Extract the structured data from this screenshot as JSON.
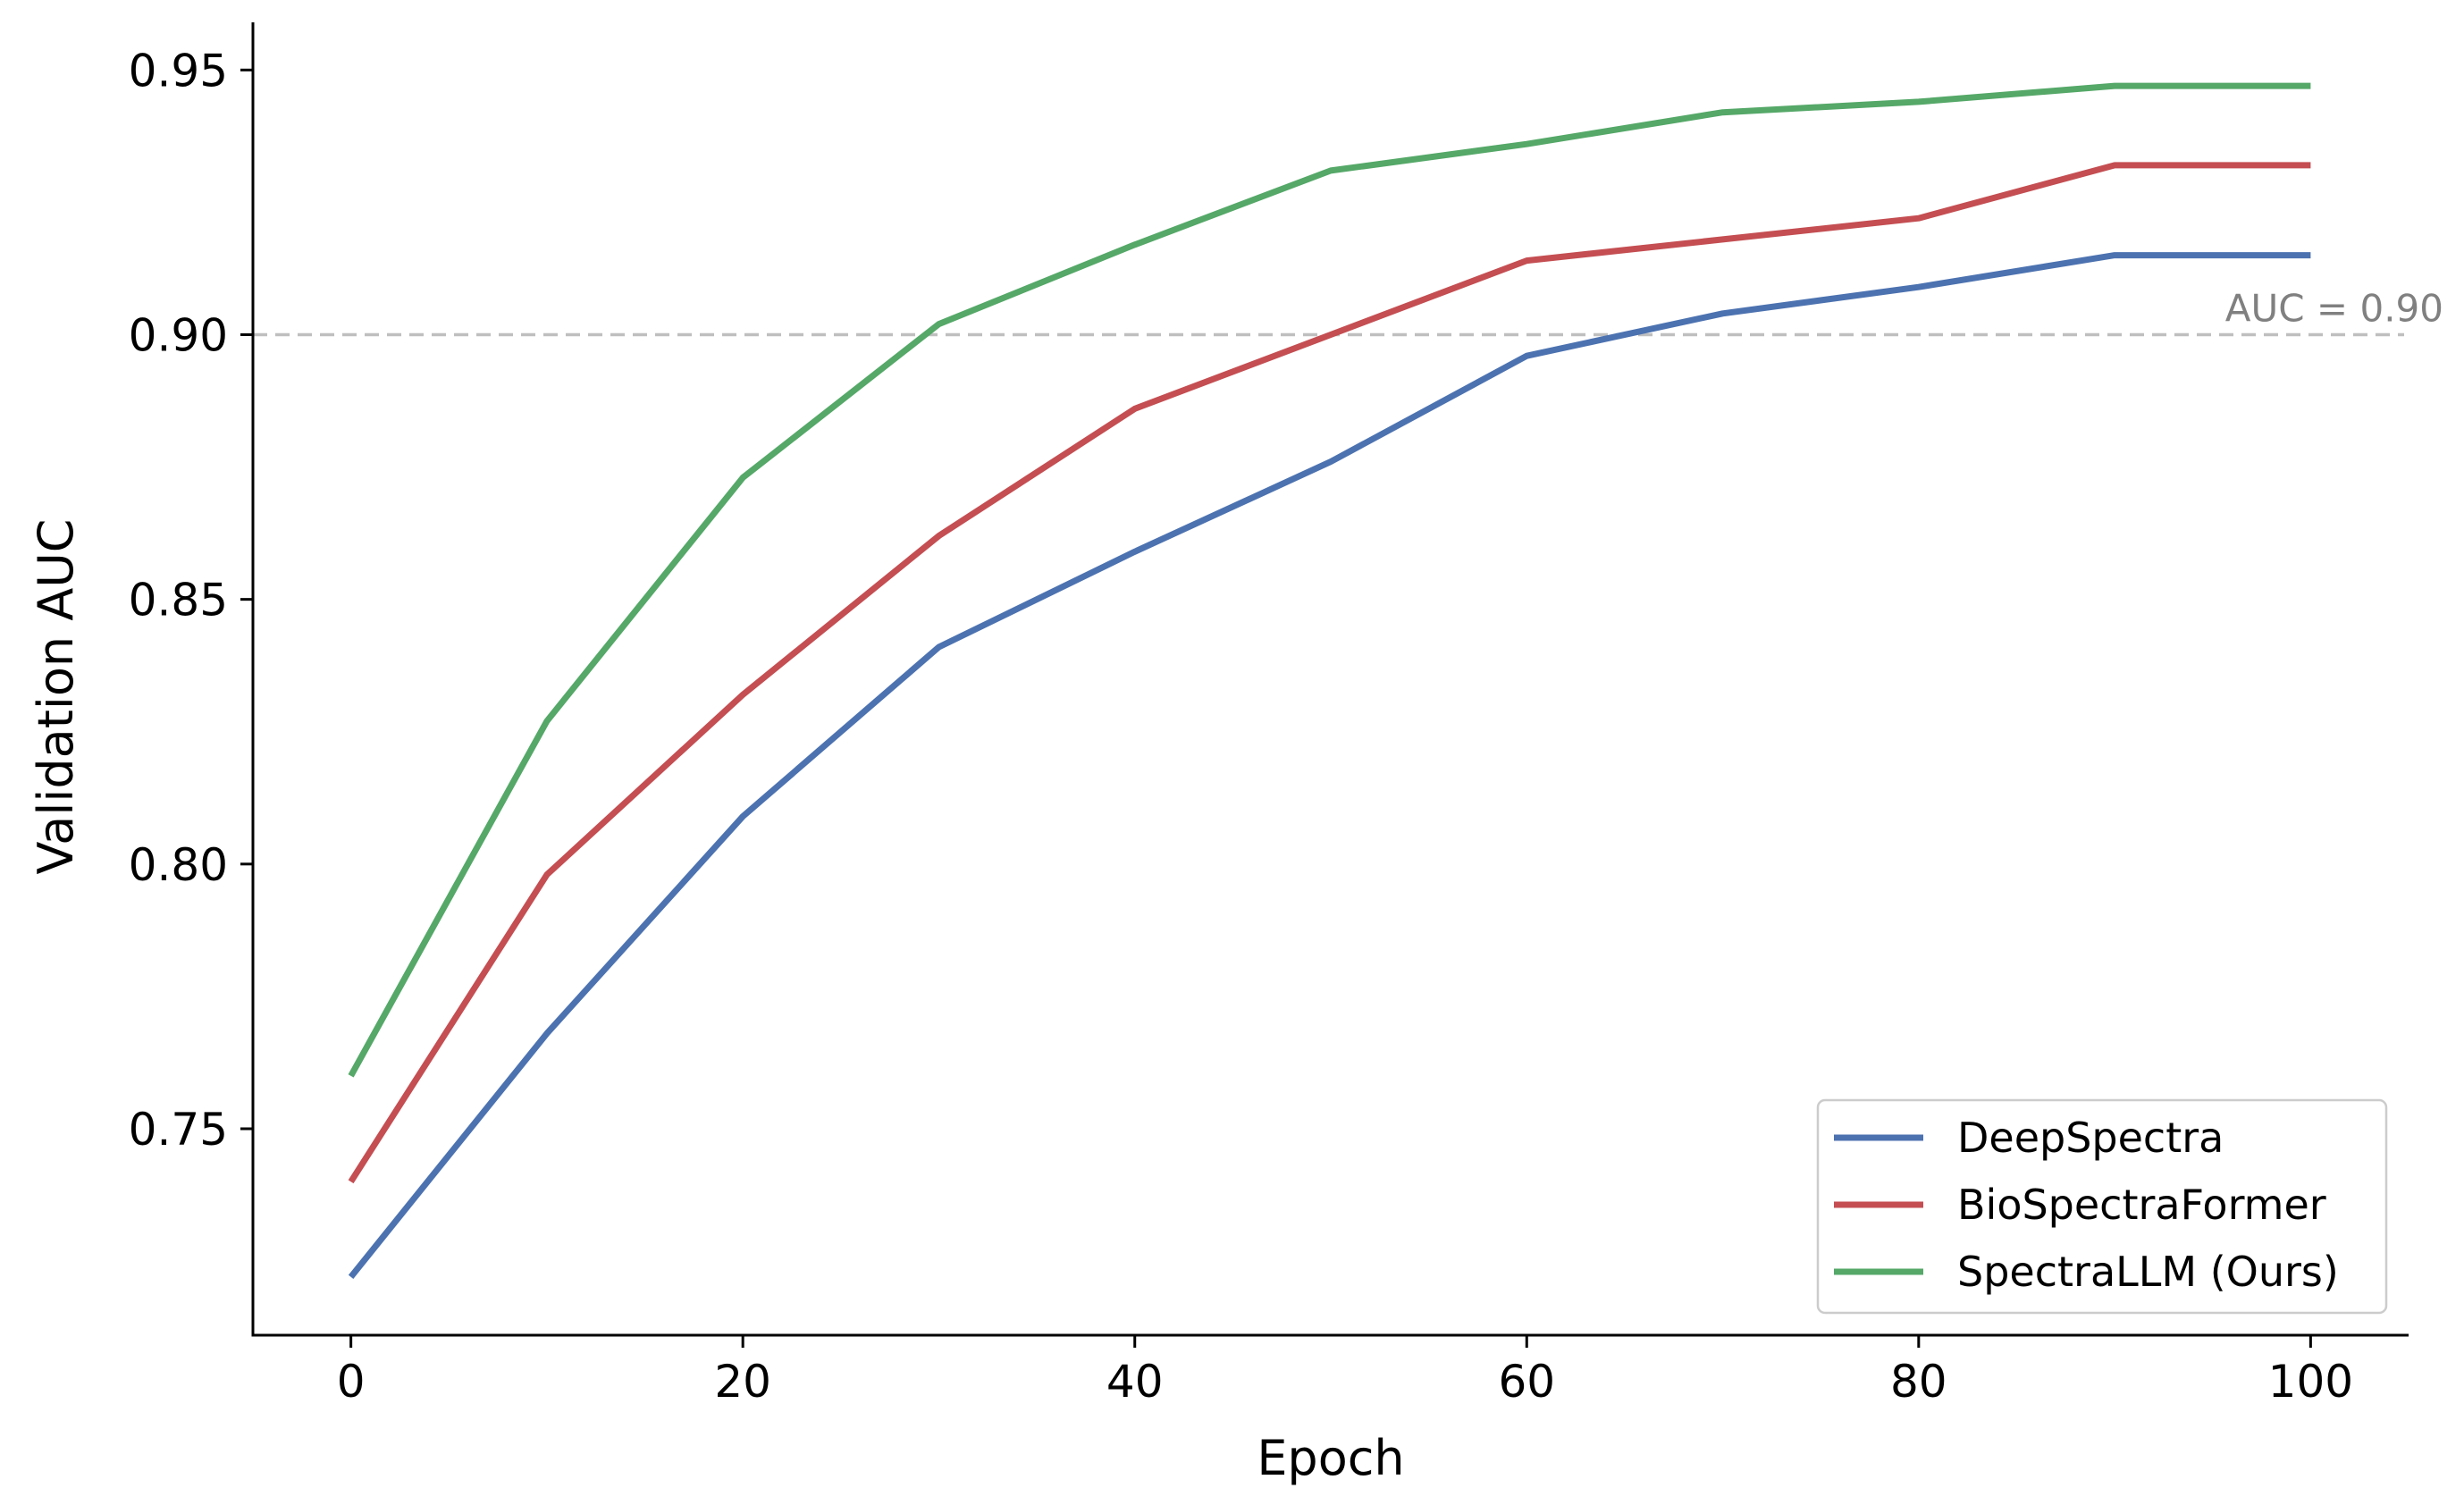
{
  "chart_data": {
    "type": "line",
    "title": "",
    "xlabel": "Epoch",
    "ylabel": "Validation AUC",
    "x": [
      0,
      10,
      20,
      30,
      40,
      50,
      60,
      70,
      80,
      90,
      100
    ],
    "xlim": [
      -5,
      105
    ],
    "ylim": [
      0.711,
      0.959
    ],
    "x_ticks": [
      "0",
      "20",
      "40",
      "60",
      "80",
      "100"
    ],
    "y_ticks": [
      "0.75",
      "0.80",
      "0.85",
      "0.90",
      "0.95"
    ],
    "grid": false,
    "legend_position": "bottom-right",
    "series": [
      {
        "name": "DeepSpectra",
        "color": "#4c72b0",
        "values": [
          0.722,
          0.768,
          0.809,
          0.841,
          0.859,
          0.876,
          0.896,
          0.904,
          0.909,
          0.915,
          0.915
        ]
      },
      {
        "name": "BioSpectraFormer",
        "color": "#c44e52",
        "values": [
          0.74,
          0.798,
          0.832,
          0.862,
          0.886,
          0.9,
          0.914,
          0.918,
          0.922,
          0.932,
          0.932
        ]
      },
      {
        "name": "SpectraLLM (Ours)",
        "color": "#55a868",
        "values": [
          0.76,
          0.827,
          0.873,
          0.902,
          0.917,
          0.931,
          0.936,
          0.942,
          0.944,
          0.947,
          0.947
        ]
      }
    ],
    "reference_line": {
      "value": 0.9,
      "label": "AUC = 0.90",
      "color": "#bfbfbf",
      "style": "dashed"
    }
  }
}
